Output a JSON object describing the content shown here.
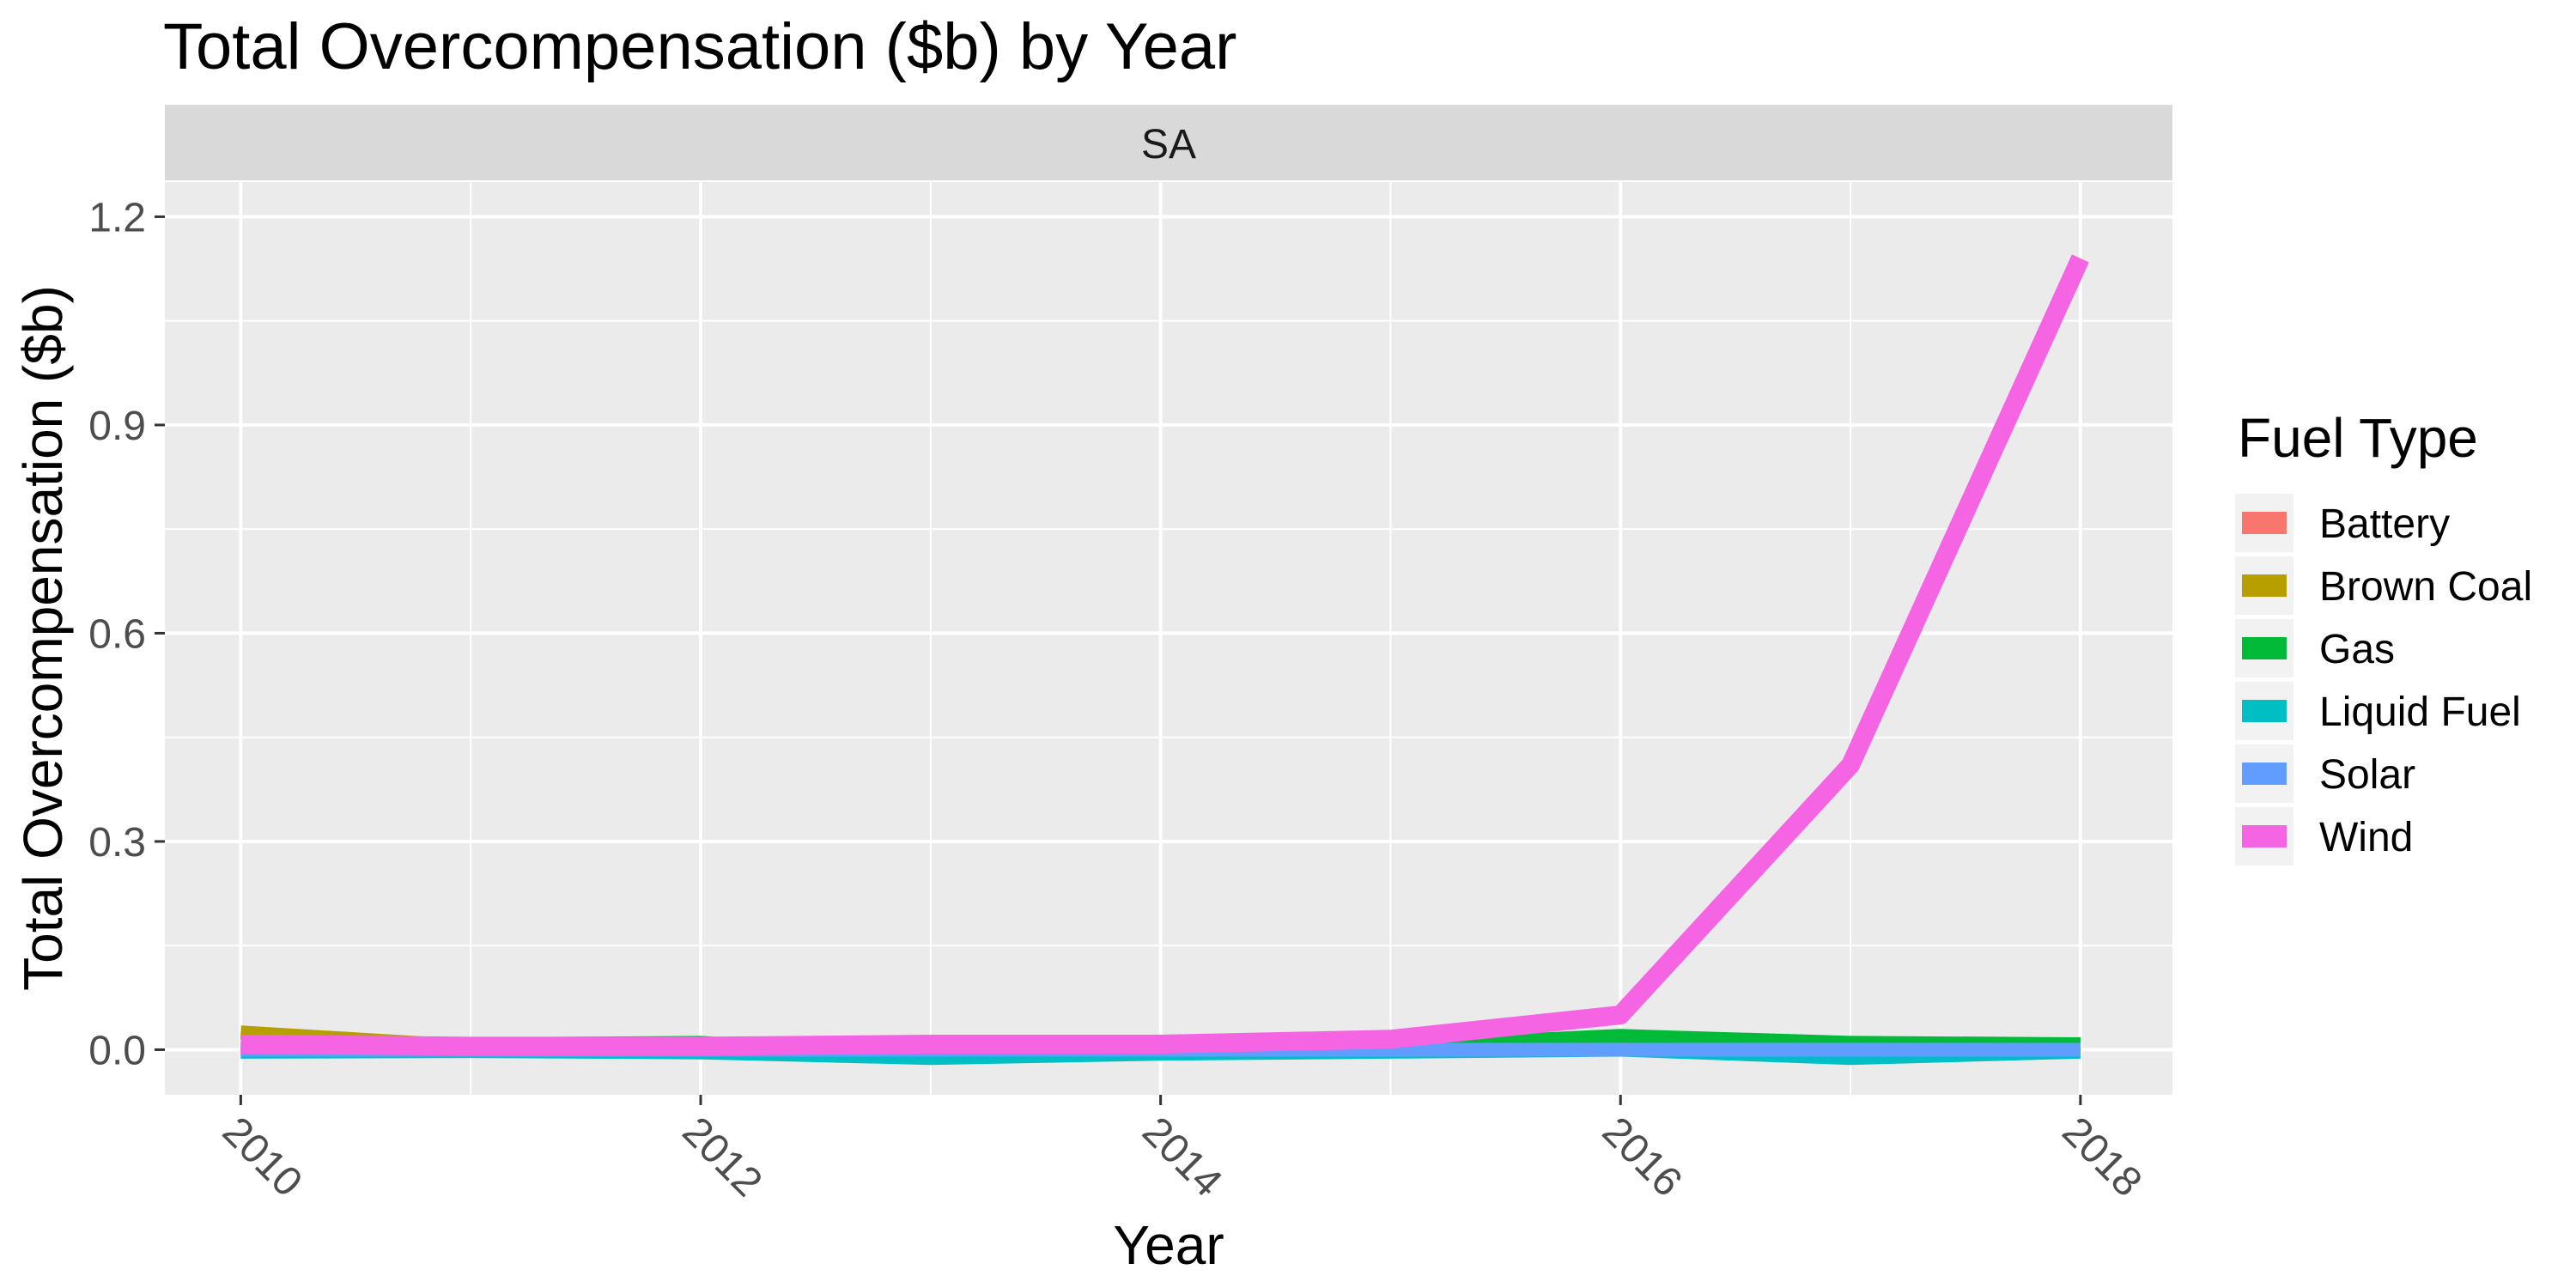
{
  "chart_data": {
    "type": "line",
    "title": "Total Overcompensation ($b) by Year",
    "facet_label": "SA",
    "xlabel": "Year",
    "ylabel": "Total Overcompensation ($b)",
    "x": [
      2010,
      2011,
      2012,
      2013,
      2014,
      2015,
      2016,
      2017,
      2018
    ],
    "xlim": [
      2009.67,
      2018.4
    ],
    "ylim": [
      -0.065,
      1.25
    ],
    "x_ticks": [
      "2010",
      "2012",
      "2014",
      "2016",
      "2018"
    ],
    "x_tick_values": [
      2010,
      2012,
      2014,
      2016,
      2018
    ],
    "y_ticks": [
      "0.0",
      "0.3",
      "0.6",
      "0.9",
      "1.2"
    ],
    "y_tick_values": [
      0,
      0.3,
      0.6,
      0.9,
      1.2
    ],
    "grid": true,
    "legend": {
      "title": "Fuel Type",
      "position": "right"
    },
    "series": [
      {
        "name": "Battery",
        "color": "#F8766D",
        "values": [
          0.0,
          0.0,
          0.0,
          0.0,
          0.0,
          0.0,
          0.0,
          0.0,
          0.0
        ]
      },
      {
        "name": "Brown Coal",
        "color": "#B79F00",
        "values": [
          0.025,
          0.005,
          0.004,
          0.003,
          0.002,
          0.002,
          0.002,
          0.002,
          0.002
        ]
      },
      {
        "name": "Gas",
        "color": "#00BA38",
        "values": [
          0.01,
          0.008,
          0.01,
          -0.01,
          0.0,
          0.005,
          0.02,
          0.01,
          0.008
        ]
      },
      {
        "name": "Liquid Fuel",
        "color": "#00BFC4",
        "values": [
          -0.003,
          -0.002,
          -0.004,
          -0.012,
          -0.006,
          -0.003,
          0.0,
          -0.012,
          -0.003
        ]
      },
      {
        "name": "Solar",
        "color": "#619CFF",
        "values": [
          0.0,
          0.0,
          0.0,
          0.0,
          0.0,
          0.0,
          0.0,
          0.0,
          0.0
        ]
      },
      {
        "name": "Wind",
        "color": "#F564E3",
        "values": [
          0.008,
          0.005,
          0.005,
          0.008,
          0.008,
          0.015,
          0.05,
          0.41,
          1.14
        ]
      }
    ]
  }
}
